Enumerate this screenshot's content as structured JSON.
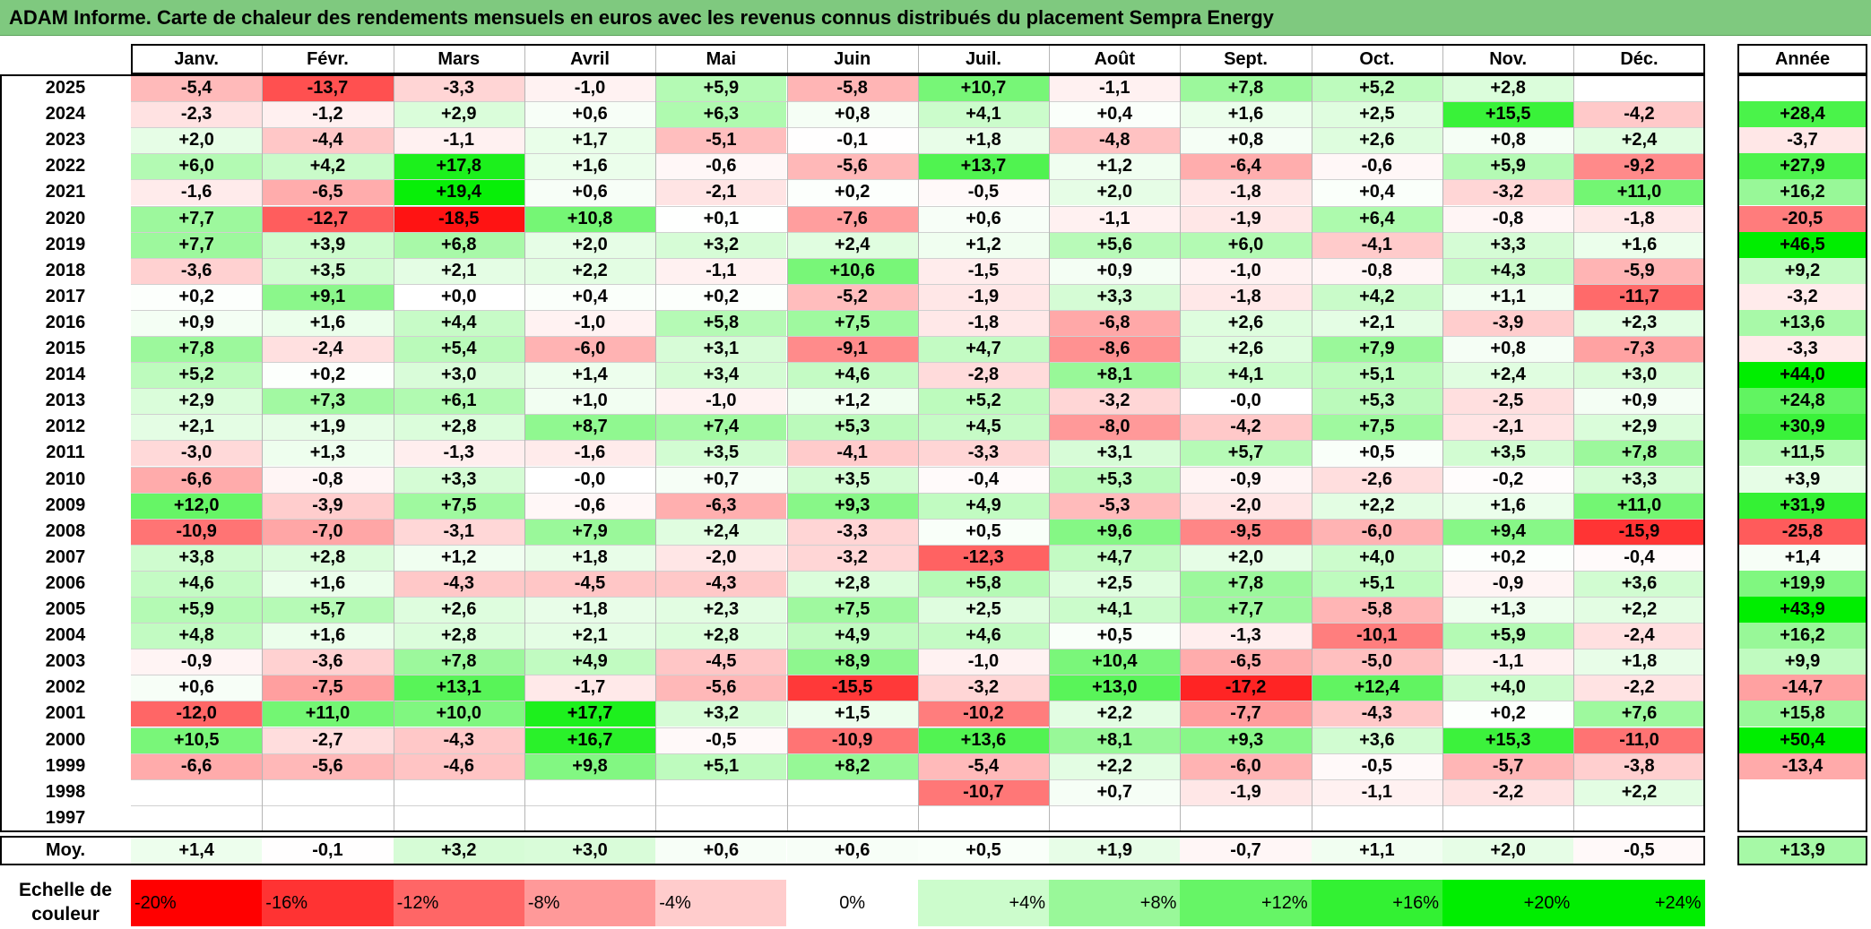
{
  "title": "ADAM Informe. Carte de chaleur des rendements mensuels en euros avec les revenus connus distribués du placement Sempra Energy",
  "chart_data": {
    "type": "heatmap",
    "months": [
      "Janv.",
      "Févr.",
      "Mars",
      "Avril",
      "Mai",
      "Juin",
      "Juil.",
      "Août",
      "Sept.",
      "Oct.",
      "Nov.",
      "Déc."
    ],
    "year_column_label": "Année",
    "rows": [
      {
        "year": "2025",
        "values": [
          "-5,4",
          "-13,7",
          "-3,3",
          "-1,0",
          "+5,9",
          "-5,8",
          "+10,7",
          "-1,1",
          "+7,8",
          "+5,2",
          "+2,8",
          ""
        ],
        "annual": ""
      },
      {
        "year": "2024",
        "values": [
          "-2,3",
          "-1,2",
          "+2,9",
          "+0,6",
          "+6,3",
          "+0,8",
          "+4,1",
          "+0,4",
          "+1,6",
          "+2,5",
          "+15,5",
          "-4,2"
        ],
        "annual": "+28,4"
      },
      {
        "year": "2023",
        "values": [
          "+2,0",
          "-4,4",
          "-1,1",
          "+1,7",
          "-5,1",
          "-0,1",
          "+1,8",
          "-4,8",
          "+0,8",
          "+2,6",
          "+0,8",
          "+2,4"
        ],
        "annual": "-3,7"
      },
      {
        "year": "2022",
        "values": [
          "+6,0",
          "+4,2",
          "+17,8",
          "+1,6",
          "-0,6",
          "-5,6",
          "+13,7",
          "+1,2",
          "-6,4",
          "-0,6",
          "+5,9",
          "-9,2"
        ],
        "annual": "+27,9"
      },
      {
        "year": "2021",
        "values": [
          "-1,6",
          "-6,5",
          "+19,4",
          "+0,6",
          "-2,1",
          "+0,2",
          "-0,5",
          "+2,0",
          "-1,8",
          "+0,4",
          "-3,2",
          "+11,0"
        ],
        "annual": "+16,2"
      },
      {
        "year": "2020",
        "values": [
          "+7,7",
          "-12,7",
          "-18,5",
          "+10,8",
          "+0,1",
          "-7,6",
          "+0,6",
          "-1,1",
          "-1,9",
          "+6,4",
          "-0,8",
          "-1,8"
        ],
        "annual": "-20,5"
      },
      {
        "year": "2019",
        "values": [
          "+7,7",
          "+3,9",
          "+6,8",
          "+2,0",
          "+3,2",
          "+2,4",
          "+1,2",
          "+5,6",
          "+6,0",
          "-4,1",
          "+3,3",
          "+1,6"
        ],
        "annual": "+46,5"
      },
      {
        "year": "2018",
        "values": [
          "-3,6",
          "+3,5",
          "+2,1",
          "+2,2",
          "-1,1",
          "+10,6",
          "-1,5",
          "+0,9",
          "-1,0",
          "-0,8",
          "+4,3",
          "-5,9"
        ],
        "annual": "+9,2"
      },
      {
        "year": "2017",
        "values": [
          "+0,2",
          "+9,1",
          "+0,0",
          "+0,4",
          "+0,2",
          "-5,2",
          "-1,9",
          "+3,3",
          "-1,8",
          "+4,2",
          "+1,1",
          "-11,7"
        ],
        "annual": "-3,2"
      },
      {
        "year": "2016",
        "values": [
          "+0,9",
          "+1,6",
          "+4,4",
          "-1,0",
          "+5,8",
          "+7,5",
          "-1,8",
          "-6,8",
          "+2,6",
          "+2,1",
          "-3,9",
          "+2,3"
        ],
        "annual": "+13,6"
      },
      {
        "year": "2015",
        "values": [
          "+7,8",
          "-2,4",
          "+5,4",
          "-6,0",
          "+3,1",
          "-9,1",
          "+4,7",
          "-8,6",
          "+2,6",
          "+7,9",
          "+0,8",
          "-7,3"
        ],
        "annual": "-3,3"
      },
      {
        "year": "2014",
        "values": [
          "+5,2",
          "+0,2",
          "+3,0",
          "+1,4",
          "+3,4",
          "+4,6",
          "-2,8",
          "+8,1",
          "+4,1",
          "+5,1",
          "+2,4",
          "+3,0"
        ],
        "annual": "+44,0"
      },
      {
        "year": "2013",
        "values": [
          "+2,9",
          "+7,3",
          "+6,1",
          "+1,0",
          "-1,0",
          "+1,2",
          "+5,2",
          "-3,2",
          "-0,0",
          "+5,3",
          "-2,5",
          "+0,9"
        ],
        "annual": "+24,8"
      },
      {
        "year": "2012",
        "values": [
          "+2,1",
          "+1,9",
          "+2,8",
          "+8,7",
          "+7,4",
          "+5,3",
          "+4,5",
          "-8,0",
          "-4,2",
          "+7,5",
          "-2,1",
          "+2,9"
        ],
        "annual": "+30,9"
      },
      {
        "year": "2011",
        "values": [
          "-3,0",
          "+1,3",
          "-1,3",
          "-1,6",
          "+3,5",
          "-4,1",
          "-3,3",
          "+3,1",
          "+5,7",
          "+0,5",
          "+3,5",
          "+7,8"
        ],
        "annual": "+11,5"
      },
      {
        "year": "2010",
        "values": [
          "-6,6",
          "-0,8",
          "+3,3",
          "-0,0",
          "+0,7",
          "+3,5",
          "-0,4",
          "+5,3",
          "-0,9",
          "-2,6",
          "-0,2",
          "+3,3"
        ],
        "annual": "+3,9"
      },
      {
        "year": "2009",
        "values": [
          "+12,0",
          "-3,9",
          "+7,5",
          "-0,6",
          "-6,3",
          "+9,3",
          "+4,9",
          "-5,3",
          "-2,0",
          "+2,2",
          "+1,6",
          "+11,0"
        ],
        "annual": "+31,9"
      },
      {
        "year": "2008",
        "values": [
          "-10,9",
          "-7,0",
          "-3,1",
          "+7,9",
          "+2,4",
          "-3,3",
          "+0,5",
          "+9,6",
          "-9,5",
          "-6,0",
          "+9,4",
          "-15,9"
        ],
        "annual": "-25,8"
      },
      {
        "year": "2007",
        "values": [
          "+3,8",
          "+2,8",
          "+1,2",
          "+1,8",
          "-2,0",
          "-3,2",
          "-12,3",
          "+4,7",
          "+2,0",
          "+4,0",
          "+0,2",
          "-0,4"
        ],
        "annual": "+1,4"
      },
      {
        "year": "2006",
        "values": [
          "+4,6",
          "+1,6",
          "-4,3",
          "-4,5",
          "-4,3",
          "+2,8",
          "+5,8",
          "+2,5",
          "+7,8",
          "+5,1",
          "-0,9",
          "+3,6"
        ],
        "annual": "+19,9"
      },
      {
        "year": "2005",
        "values": [
          "+5,9",
          "+5,7",
          "+2,6",
          "+1,8",
          "+2,3",
          "+7,5",
          "+2,5",
          "+4,1",
          "+7,7",
          "-5,8",
          "+1,3",
          "+2,2"
        ],
        "annual": "+43,9"
      },
      {
        "year": "2004",
        "values": [
          "+4,8",
          "+1,6",
          "+2,8",
          "+2,1",
          "+2,8",
          "+4,9",
          "+4,6",
          "+0,5",
          "-1,3",
          "-10,1",
          "+5,9",
          "-2,4"
        ],
        "annual": "+16,2"
      },
      {
        "year": "2003",
        "values": [
          "-0,9",
          "-3,6",
          "+7,8",
          "+4,9",
          "-4,5",
          "+8,9",
          "-1,0",
          "+10,4",
          "-6,5",
          "-5,0",
          "-1,1",
          "+1,8"
        ],
        "annual": "+9,9"
      },
      {
        "year": "2002",
        "values": [
          "+0,6",
          "-7,5",
          "+13,1",
          "-1,7",
          "-5,6",
          "-15,5",
          "-3,2",
          "+13,0",
          "-17,2",
          "+12,4",
          "+4,0",
          "-2,2"
        ],
        "annual": "-14,7"
      },
      {
        "year": "2001",
        "values": [
          "-12,0",
          "+11,0",
          "+10,0",
          "+17,7",
          "+3,2",
          "+1,5",
          "-10,2",
          "+2,2",
          "-7,7",
          "-4,3",
          "+0,2",
          "+7,6"
        ],
        "annual": "+15,8"
      },
      {
        "year": "2000",
        "values": [
          "+10,5",
          "-2,7",
          "-4,3",
          "+16,7",
          "-0,5",
          "-10,9",
          "+13,6",
          "+8,1",
          "+9,3",
          "+3,6",
          "+15,3",
          "-11,0"
        ],
        "annual": "+50,4"
      },
      {
        "year": "1999",
        "values": [
          "-6,6",
          "-5,6",
          "-4,6",
          "+9,8",
          "+5,1",
          "+8,2",
          "-5,4",
          "+2,2",
          "-6,0",
          "-0,5",
          "-5,7",
          "-3,8"
        ],
        "annual": "-13,4"
      },
      {
        "year": "1998",
        "values": [
          "",
          "",
          "",
          "",
          "",
          "",
          "-10,7",
          "+0,7",
          "-1,9",
          "-1,1",
          "-2,2",
          "+2,2"
        ],
        "annual": ""
      },
      {
        "year": "1997",
        "values": [
          "",
          "",
          "",
          "",
          "",
          "",
          "",
          "",
          "",
          "",
          "",
          ""
        ],
        "annual": ""
      }
    ],
    "average": {
      "label": "Moy.",
      "values": [
        "+1,4",
        "-0,1",
        "+3,2",
        "+3,0",
        "+0,6",
        "+0,6",
        "+0,5",
        "+1,9",
        "-0,7",
        "+1,1",
        "+2,0",
        "-0,5"
      ],
      "annual": "+13,9"
    },
    "legend": {
      "title": "Echelle de couleur",
      "items": [
        "-20%",
        "-16%",
        "-12%",
        "-8%",
        "-4%",
        "0%",
        "+4%",
        "+8%",
        "+12%",
        "+16%",
        "+20%",
        "+24%"
      ]
    },
    "colors": {
      "negative_max": "#ff0000",
      "positive_max": "#00ee00",
      "neutral": "#ffffff",
      "title_bar": "#7fc97f"
    }
  }
}
